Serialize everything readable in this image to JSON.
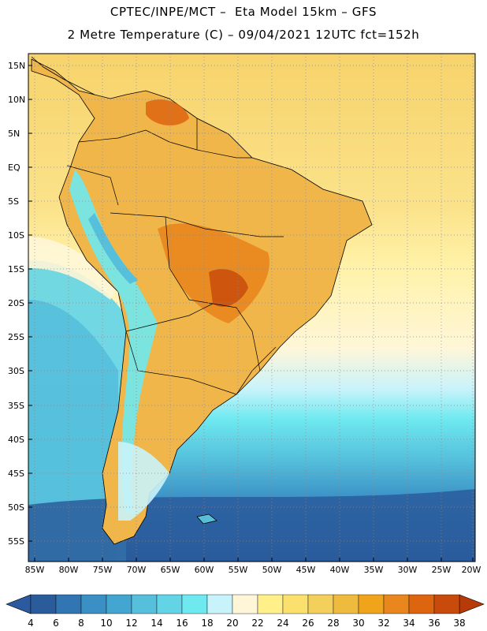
{
  "header": {
    "title_line1": "CPTEC/INPE/MCT –  Eta Model 15km – GFS",
    "title_line2": "2 Metre Temperature (C) – 09/04/2021 12UTC fct=152h"
  },
  "map": {
    "lat_labels": [
      "15N",
      "10N",
      "5N",
      "EQ",
      "5S",
      "10S",
      "15S",
      "20S",
      "25S",
      "30S",
      "35S",
      "40S",
      "45S",
      "50S",
      "55S"
    ],
    "lon_labels": [
      "85W",
      "80W",
      "75W",
      "70W",
      "65W",
      "60W",
      "55W",
      "50W",
      "45W",
      "40W",
      "35W",
      "30W",
      "25W",
      "20W"
    ],
    "region": "South America",
    "variable": "2 Metre Temperature",
    "unit": "C"
  },
  "colorbar": {
    "labels": [
      "4",
      "6",
      "8",
      "10",
      "12",
      "14",
      "16",
      "18",
      "20",
      "22",
      "24",
      "26",
      "28",
      "30",
      "32",
      "34",
      "36",
      "38"
    ],
    "colors": [
      "#2a5c9c",
      "#3176b3",
      "#3a8fc4",
      "#43a6d0",
      "#55bfdc",
      "#62d4e6",
      "#6ee9f0",
      "#c9f3fb",
      "#fff6d8",
      "#fff08a",
      "#fbe06d",
      "#f3cf5b",
      "#eebb3f",
      "#f0a41c",
      "#e9861e",
      "#dd6510",
      "#c84b0b"
    ],
    "low_arrow_color": "#2b5aa0",
    "high_arrow_color": "#b73b08"
  }
}
